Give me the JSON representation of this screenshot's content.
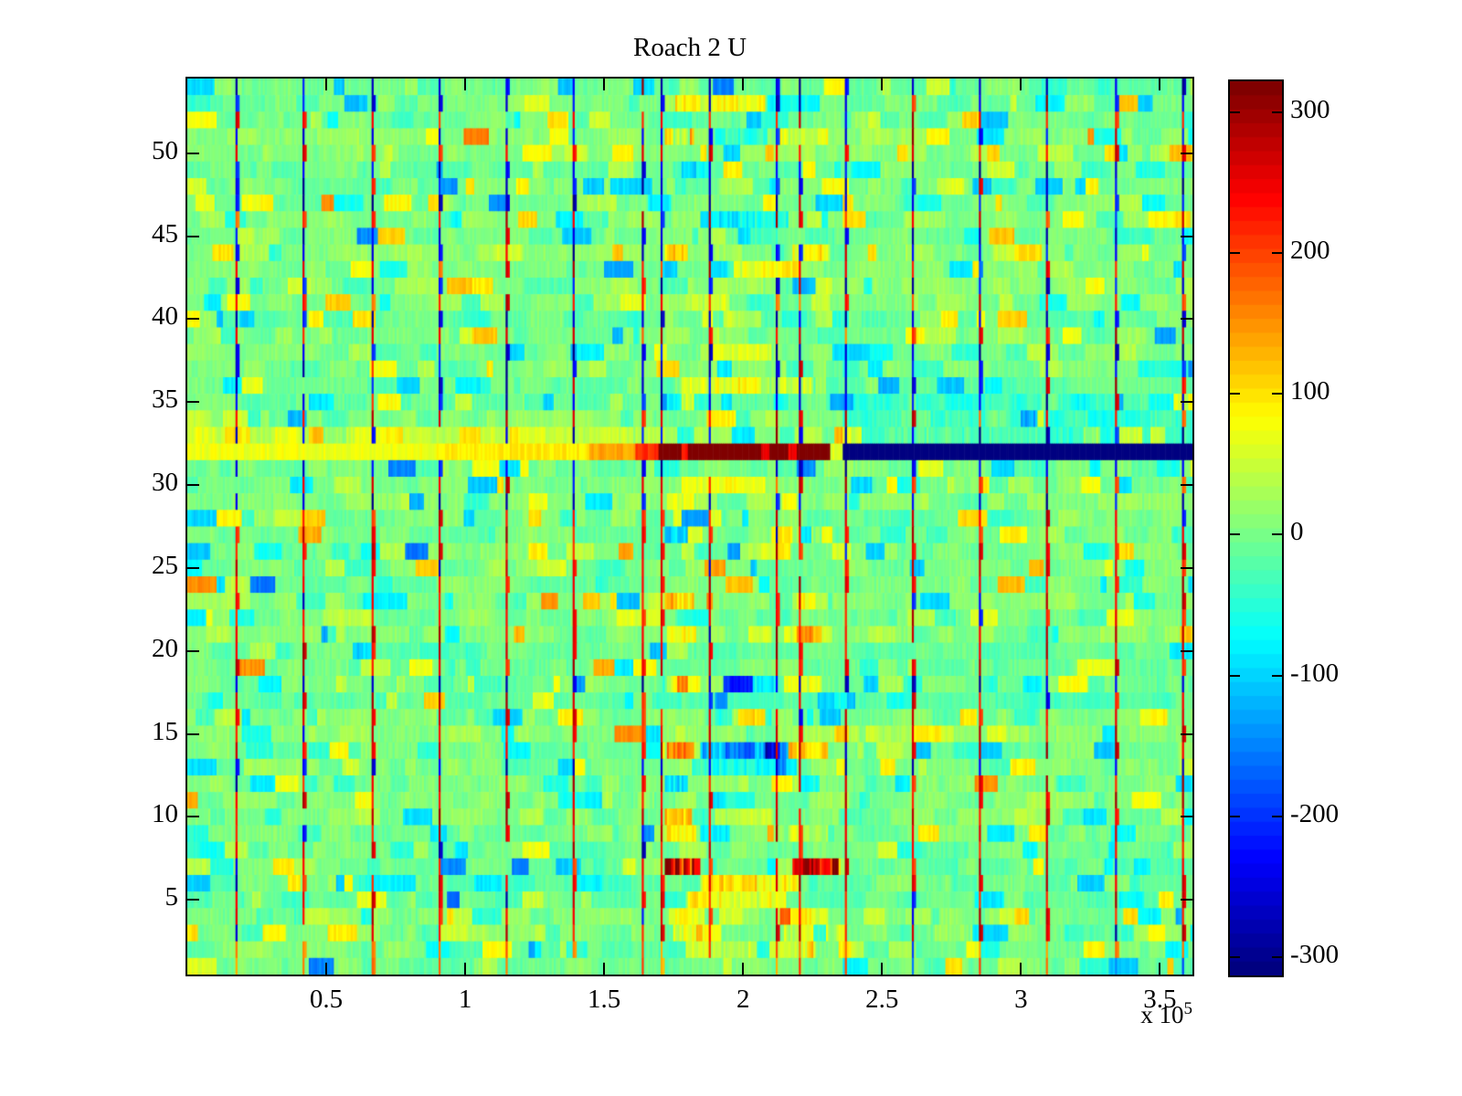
{
  "figure": {
    "background": "#ffffff"
  },
  "chart_data": {
    "type": "heatmap",
    "title": "Roach 2 U",
    "colormap": "jet",
    "clim": [
      -313,
      322
    ],
    "rows": 54,
    "cols": 480,
    "x_axis": {
      "unit_multiplier": 100000,
      "multiplier_text": "x 10",
      "multiplier_exponent": "5",
      "range_e5": [
        0,
        3.617
      ],
      "ticks_e5": [
        0.5,
        1,
        1.5,
        2,
        2.5,
        3,
        3.5
      ],
      "tick_labels": [
        "0.5",
        "1",
        "1.5",
        "2",
        "2.5",
        "3",
        "3.5"
      ]
    },
    "y_axis": {
      "range": [
        0.5,
        54.5
      ],
      "ticks": [
        5,
        10,
        15,
        20,
        25,
        30,
        35,
        40,
        45,
        50
      ],
      "tick_labels": [
        "5",
        "10",
        "15",
        "20",
        "25",
        "30",
        "35",
        "40",
        "45",
        "50"
      ]
    },
    "colorbar": {
      "min": -313,
      "max": 322,
      "levels": 64,
      "ticks": [
        300,
        200,
        100,
        0,
        -100,
        -200,
        -300
      ],
      "tick_labels": [
        "300",
        "200",
        "100",
        "0",
        "-100",
        "-200",
        "-300"
      ]
    },
    "features": {
      "background_noise": {
        "mean": 0,
        "typical_range": [
          -60,
          60
        ]
      },
      "vertical_lines": {
        "start_e5": 0.174,
        "spacing_e5": 0.2432,
        "count": 15,
        "extra_e5": [
          1.7,
          2.2
        ],
        "upper_row_min": 29,
        "upper_red_rows": [
          52,
          50,
          46,
          43,
          41,
          39,
          34,
          30
        ],
        "lower_blue_rows": [
          18,
          13
        ],
        "bottom_orange_rows": [
          1,
          2
        ]
      },
      "anomaly_row": {
        "row": 32,
        "segments": [
          {
            "x0": 0.0,
            "x1": 0.9,
            "value": 75
          },
          {
            "x0": 0.9,
            "x1": 1.45,
            "value": 95
          },
          {
            "x0": 1.45,
            "x1": 1.62,
            "value": 140
          },
          {
            "x0": 1.62,
            "x1": 1.7,
            "value": 215
          },
          {
            "x0": 1.7,
            "x1": 1.785,
            "value": 322
          },
          {
            "x0": 1.785,
            "x1": 1.805,
            "value": 235
          },
          {
            "x0": 1.805,
            "x1": 2.07,
            "value": 322
          },
          {
            "x0": 2.07,
            "x1": 2.1,
            "value": 255
          },
          {
            "x0": 2.1,
            "x1": 2.17,
            "value": 322
          },
          {
            "x0": 2.17,
            "x1": 2.2,
            "value": 245
          },
          {
            "x0": 2.2,
            "x1": 2.32,
            "value": 322
          },
          {
            "x0": 2.32,
            "x1": 2.36,
            "value": 60
          },
          {
            "x0": 2.36,
            "x1": 3.617,
            "value": -313
          }
        ]
      },
      "row_tints": {
        "33": 15,
        "34": 10,
        "35": -10,
        "36": -8,
        "51": 8,
        "44": 10,
        "29": 8,
        "24": -8,
        "23": 8,
        "20": -14,
        "17": -10,
        "15": 8,
        "8": -8
      },
      "patches": [
        [
          53,
          1.76,
          2.08,
          85
        ],
        [
          53,
          2.08,
          2.27,
          -65
        ],
        [
          51,
          1.72,
          1.82,
          105
        ],
        [
          51,
          1.9,
          2.08,
          -55
        ],
        [
          51,
          2.12,
          2.3,
          60
        ],
        [
          49,
          1.78,
          1.88,
          -60
        ],
        [
          46,
          1.85,
          2.16,
          -85
        ],
        [
          44,
          1.72,
          1.8,
          90
        ],
        [
          44,
          2.18,
          2.3,
          70
        ],
        [
          43,
          1.95,
          2.2,
          65
        ],
        [
          41,
          1.8,
          1.95,
          60
        ],
        [
          38,
          1.85,
          2.1,
          55
        ],
        [
          36,
          1.78,
          2.25,
          75
        ],
        [
          35,
          1.73,
          1.82,
          80
        ],
        [
          35,
          2.3,
          3.6,
          -35
        ],
        [
          34,
          2.36,
          3.617,
          -45
        ],
        [
          33,
          0.0,
          1.6,
          35
        ],
        [
          33,
          2.36,
          3.617,
          -50
        ],
        [
          30,
          1.78,
          1.98,
          60
        ],
        [
          29,
          1.73,
          1.82,
          65
        ],
        [
          27,
          1.72,
          1.8,
          -95
        ],
        [
          27,
          2.18,
          2.28,
          -70
        ],
        [
          23,
          1.72,
          1.82,
          95
        ],
        [
          23,
          2.18,
          2.3,
          75
        ],
        [
          21,
          1.73,
          1.83,
          70
        ],
        [
          21,
          2.15,
          2.28,
          60
        ],
        [
          18,
          1.72,
          1.8,
          85
        ],
        [
          18,
          1.85,
          2.12,
          -75
        ],
        [
          18,
          2.15,
          2.28,
          70
        ],
        [
          16,
          1.9,
          2.1,
          -50
        ],
        [
          14,
          1.71,
          1.82,
          125
        ],
        [
          14,
          1.85,
          2.16,
          -140
        ],
        [
          14,
          2.17,
          2.3,
          120
        ],
        [
          13,
          1.82,
          2.15,
          -70
        ],
        [
          12,
          1.72,
          1.8,
          -95
        ],
        [
          12,
          2.18,
          2.27,
          -65
        ],
        [
          10,
          1.72,
          1.81,
          115
        ],
        [
          10,
          1.9,
          2.1,
          45
        ],
        [
          9,
          1.73,
          1.83,
          85
        ],
        [
          9,
          2.17,
          2.3,
          65
        ],
        [
          7,
          1.72,
          1.84,
          265
        ],
        [
          7,
          2.18,
          2.34,
          255
        ],
        [
          6,
          1.85,
          2.2,
          95
        ],
        [
          5,
          1.8,
          2.15,
          80
        ],
        [
          4,
          1.74,
          1.86,
          70
        ],
        [
          4,
          2.12,
          2.3,
          70
        ],
        [
          3,
          1.75,
          1.85,
          60
        ],
        [
          3,
          2.15,
          2.3,
          55
        ],
        [
          2,
          1.8,
          2.25,
          55
        ]
      ]
    }
  }
}
